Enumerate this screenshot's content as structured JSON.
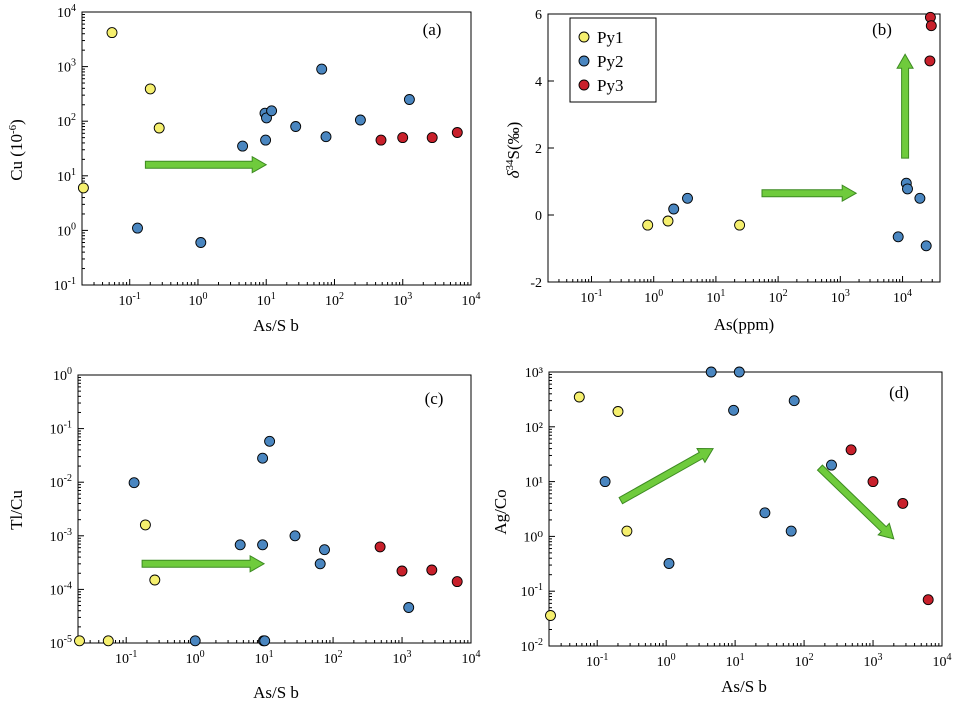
{
  "legend": {
    "items": [
      {
        "label": "Py1",
        "color": "#f5ef6e"
      },
      {
        "label": "Py2",
        "color": "#4a86c0"
      },
      {
        "label": "Py3",
        "color": "#c8202b"
      }
    ]
  },
  "colors": {
    "Py1": "#f5ef6e",
    "Py2": "#4a86c0",
    "Py3": "#c8202b",
    "arrow": "#6fcb3c",
    "arrow_edge": "#3d8a22"
  },
  "chart_data": [
    {
      "id": "a",
      "type": "scatter",
      "panel_label": "(a)",
      "xlabel": "As/S b",
      "ylabel": "Cu (10⁻⁶)",
      "xscale": "log",
      "yscale": "log",
      "xlim": [
        0.02,
        10000
      ],
      "ylim": [
        0.1,
        10000
      ],
      "x_ticks": [
        {
          "v": 0.1,
          "e": "-1"
        },
        {
          "v": 1,
          "e": "0"
        },
        {
          "v": 10,
          "e": "1"
        },
        {
          "v": 100,
          "e": "2"
        },
        {
          "v": 1000,
          "e": "3"
        },
        {
          "v": 10000,
          "e": "4"
        }
      ],
      "y_ticks": [
        {
          "v": 0.1,
          "e": "-1"
        },
        {
          "v": 1,
          "e": "0"
        },
        {
          "v": 10,
          "e": "1"
        },
        {
          "v": 100,
          "e": "2"
        },
        {
          "v": 1000,
          "e": "3"
        },
        {
          "v": 10000,
          "e": "4"
        }
      ],
      "series": [
        {
          "name": "Py1",
          "points": [
            [
              0.021,
              6
            ],
            [
              0.055,
              4200
            ],
            [
              0.2,
              390
            ],
            [
              0.27,
              75
            ]
          ]
        },
        {
          "name": "Py2",
          "points": [
            [
              0.13,
              1.1
            ],
            [
              1.1,
              0.6
            ],
            [
              4.5,
              35
            ],
            [
              9.6,
              140
            ],
            [
              10.1,
              115
            ],
            [
              9.8,
              45
            ],
            [
              12,
              155
            ],
            [
              27,
              80
            ],
            [
              65,
              900
            ],
            [
              75,
              52
            ],
            [
              240,
              105
            ],
            [
              1250,
              250
            ]
          ]
        },
        {
          "name": "Py3",
          "points": [
            [
              480,
              45
            ],
            [
              1000,
              50
            ],
            [
              2700,
              50
            ],
            [
              6300,
              62
            ]
          ]
        }
      ],
      "arrows": [
        {
          "from": [
            0.17,
            16
          ],
          "to": [
            10,
            16
          ]
        }
      ]
    },
    {
      "id": "b",
      "type": "scatter",
      "panel_label": "(b)",
      "xlabel": "As(ppm)",
      "ylabel": "δ34S(‰)",
      "xscale": "log",
      "yscale": "linear",
      "xlim": [
        0.02,
        40000
      ],
      "ylim": [
        -2,
        6
      ],
      "x_ticks": [
        {
          "v": 0.1,
          "e": "-1"
        },
        {
          "v": 1,
          "e": "0"
        },
        {
          "v": 10,
          "e": "1"
        },
        {
          "v": 100,
          "e": "2"
        },
        {
          "v": 1000,
          "e": "3"
        },
        {
          "v": 10000,
          "e": "4"
        }
      ],
      "y_ticks": [
        {
          "v": -2,
          "t": "-2"
        },
        {
          "v": 0,
          "t": "0"
        },
        {
          "v": 2,
          "t": "2"
        },
        {
          "v": 4,
          "t": "4"
        },
        {
          "v": 6,
          "t": "6"
        }
      ],
      "series": [
        {
          "name": "Py1",
          "points": [
            [
              0.8,
              -0.3
            ],
            [
              1.7,
              -0.18
            ],
            [
              24,
              -0.3
            ]
          ]
        },
        {
          "name": "Py2",
          "points": [
            [
              2.1,
              0.18
            ],
            [
              3.5,
              0.5
            ],
            [
              8500,
              -0.65
            ],
            [
              11500,
              0.95
            ],
            [
              12000,
              0.78
            ],
            [
              19000,
              0.5
            ],
            [
              24000,
              -0.92
            ]
          ]
        },
        {
          "name": "Py3",
          "points": [
            [
              27500,
              4.6
            ],
            [
              28000,
              5.9
            ],
            [
              29000,
              5.65
            ]
          ]
        }
      ],
      "arrows": [
        {
          "from": [
            55,
            0.65
          ],
          "to": [
            1800,
            0.65
          ]
        },
        {
          "from": [
            11000,
            1.7
          ],
          "to": [
            11000,
            4.8
          ]
        }
      ]
    },
    {
      "id": "c",
      "type": "scatter",
      "panel_label": "(c)",
      "xlabel": "As/S b",
      "ylabel": "Tl/Cu",
      "xscale": "log",
      "yscale": "log",
      "xlim": [
        0.02,
        10000
      ],
      "ylim": [
        1e-05,
        1
      ],
      "x_ticks": [
        {
          "v": 0.1,
          "e": "-1"
        },
        {
          "v": 1,
          "e": "0"
        },
        {
          "v": 10,
          "e": "1"
        },
        {
          "v": 100,
          "e": "2"
        },
        {
          "v": 1000,
          "e": "3"
        },
        {
          "v": 10000,
          "e": "4"
        }
      ],
      "y_ticks": [
        {
          "v": 1e-05,
          "e": "-5"
        },
        {
          "v": 0.0001,
          "e": "-4"
        },
        {
          "v": 0.001,
          "e": "-3"
        },
        {
          "v": 0.01,
          "e": "-2"
        },
        {
          "v": 0.1,
          "e": "-1"
        },
        {
          "v": 1,
          "e": "0"
        }
      ],
      "series": [
        {
          "name": "Py1",
          "points": [
            [
              0.021,
              1.1e-05
            ],
            [
              0.055,
              1.1e-05
            ],
            [
              0.19,
              0.0016
            ],
            [
              0.26,
              0.00015
            ]
          ]
        },
        {
          "name": "Py2",
          "points": [
            [
              0.13,
              0.0098
            ],
            [
              1.0,
              1.1e-05
            ],
            [
              4.5,
              0.00068
            ],
            [
              9.5,
              0.00068
            ],
            [
              9.5,
              0.028
            ],
            [
              12,
              0.058
            ],
            [
              9.8,
              1.1e-05
            ],
            [
              10.2,
              1.1e-05
            ],
            [
              28,
              0.001
            ],
            [
              65,
              0.0003
            ],
            [
              75,
              0.00055
            ],
            [
              1250,
              4.6e-05
            ]
          ]
        },
        {
          "name": "Py3",
          "points": [
            [
              480,
              0.00062
            ],
            [
              1000,
              0.00022
            ],
            [
              2700,
              0.00023
            ],
            [
              6300,
              0.00014
            ]
          ]
        }
      ],
      "arrows": [
        {
          "from": [
            0.17,
            0.0003
          ],
          "to": [
            10,
            0.0003
          ]
        }
      ]
    },
    {
      "id": "d",
      "type": "scatter",
      "panel_label": "(d)",
      "xlabel": "As/S b",
      "ylabel": "Ag/Co",
      "xscale": "log",
      "yscale": "log",
      "xlim": [
        0.02,
        10000
      ],
      "ylim": [
        0.01,
        1000
      ],
      "x_ticks": [
        {
          "v": 0.1,
          "e": "-1"
        },
        {
          "v": 1,
          "e": "0"
        },
        {
          "v": 10,
          "e": "1"
        },
        {
          "v": 100,
          "e": "2"
        },
        {
          "v": 1000,
          "e": "3"
        },
        {
          "v": 10000,
          "e": "4"
        }
      ],
      "y_ticks": [
        {
          "v": 0.01,
          "e": "-2"
        },
        {
          "v": 0.1,
          "e": "-1"
        },
        {
          "v": 1,
          "t": "10⁰"
        },
        {
          "v": 10,
          "t": "10¹"
        },
        {
          "v": 100,
          "t": "10²"
        },
        {
          "v": 1000,
          "t": "10³"
        }
      ],
      "y_tick_format": "mixed",
      "series": [
        {
          "name": "Py1",
          "points": [
            [
              0.021,
              0.036
            ],
            [
              0.055,
              350
            ],
            [
              0.2,
              190
            ],
            [
              0.27,
              1.25
            ]
          ]
        },
        {
          "name": "Py2",
          "points": [
            [
              0.13,
              10
            ],
            [
              1.1,
              0.32
            ],
            [
              4.5,
              1000
            ],
            [
              9.5,
              200
            ],
            [
              11.5,
              1000
            ],
            [
              27,
              2.7
            ],
            [
              65,
              1.25
            ],
            [
              72,
              300
            ],
            [
              250,
              20
            ]
          ]
        },
        {
          "name": "Py3",
          "points": [
            [
              480,
              38
            ],
            [
              1000,
              10
            ],
            [
              2700,
              4.0
            ],
            [
              6300,
              0.07
            ]
          ]
        }
      ],
      "arrows": [
        {
          "from": [
            0.22,
            4.5
          ],
          "to": [
            4.8,
            40
          ]
        },
        {
          "from": [
            170,
            18
          ],
          "to": [
            2000,
            0.9
          ]
        }
      ]
    }
  ]
}
